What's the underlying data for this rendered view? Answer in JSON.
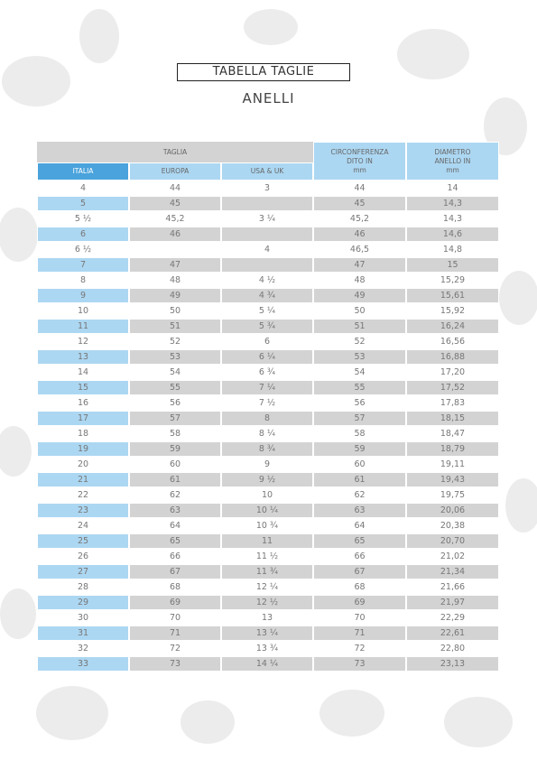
{
  "header": {
    "title": "TABELLA TAGLIE",
    "subtitle": "ANELLI"
  },
  "table": {
    "group_header": "TAGLIA",
    "columns": [
      "ITALIA",
      "EUROPA",
      "USA & UK"
    ],
    "circumference_header": [
      "CIRCONFERENZA",
      "DITO IN",
      "mm"
    ],
    "diameter_header": [
      "DIAMETRO",
      "ANELLO IN",
      "mm"
    ],
    "rows": [
      [
        "4",
        "44",
        "3",
        "44",
        "14"
      ],
      [
        "5",
        "45",
        null,
        "45",
        "14,3"
      ],
      [
        "5 ½",
        "45,2",
        "3 ¼",
        "45,2",
        "14,3"
      ],
      [
        "6",
        "46",
        null,
        "46",
        "14,6"
      ],
      [
        "6 ½",
        null,
        "4",
        "46,5",
        "14,8"
      ],
      [
        "7",
        "47",
        null,
        "47",
        "15"
      ],
      [
        "8",
        "48",
        "4 ½",
        "48",
        "15,29"
      ],
      [
        "9",
        "49",
        "4 ¾",
        "49",
        "15,61"
      ],
      [
        "10",
        "50",
        "5 ¼",
        "50",
        "15,92"
      ],
      [
        "11",
        "51",
        "5 ¾",
        "51",
        "16,24"
      ],
      [
        "12",
        "52",
        "6",
        "52",
        "16,56"
      ],
      [
        "13",
        "53",
        "6 ¼",
        "53",
        "16,88"
      ],
      [
        "14",
        "54",
        "6 ¾",
        "54",
        "17,20"
      ],
      [
        "15",
        "55",
        "7 ¼",
        "55",
        "17,52"
      ],
      [
        "16",
        "56",
        "7 ½",
        "56",
        "17,83"
      ],
      [
        "17",
        "57",
        "8",
        "57",
        "18,15"
      ],
      [
        "18",
        "58",
        "8 ¼",
        "58",
        "18,47"
      ],
      [
        "19",
        "59",
        "8 ¾",
        "59",
        "18,79"
      ],
      [
        "20",
        "60",
        "9",
        "60",
        "19,11"
      ],
      [
        "21",
        "61",
        "9 ½",
        "61",
        "19,43"
      ],
      [
        "22",
        "62",
        "10",
        "62",
        "19,75"
      ],
      [
        "23",
        "63",
        "10 ¼",
        "63",
        "20,06"
      ],
      [
        "24",
        "64",
        "10 ¾",
        "64",
        "20,38"
      ],
      [
        "25",
        "65",
        "11",
        "65",
        "20,70"
      ],
      [
        "26",
        "66",
        "11 ½",
        "66",
        "21,02"
      ],
      [
        "27",
        "67",
        "11 ¾",
        "67",
        "21,34"
      ],
      [
        "28",
        "68",
        "12 ¼",
        "68",
        "21,66"
      ],
      [
        "29",
        "69",
        "12 ½",
        "69",
        "21,97"
      ],
      [
        "30",
        "70",
        "13",
        "70",
        "22,29"
      ],
      [
        "31",
        "71",
        "13 ¼",
        "71",
        "22,61"
      ],
      [
        "32",
        "72",
        "13 ¾",
        "72",
        "22,80"
      ],
      [
        "33",
        "73",
        "14 ¼",
        "73",
        "23,13"
      ]
    ]
  }
}
